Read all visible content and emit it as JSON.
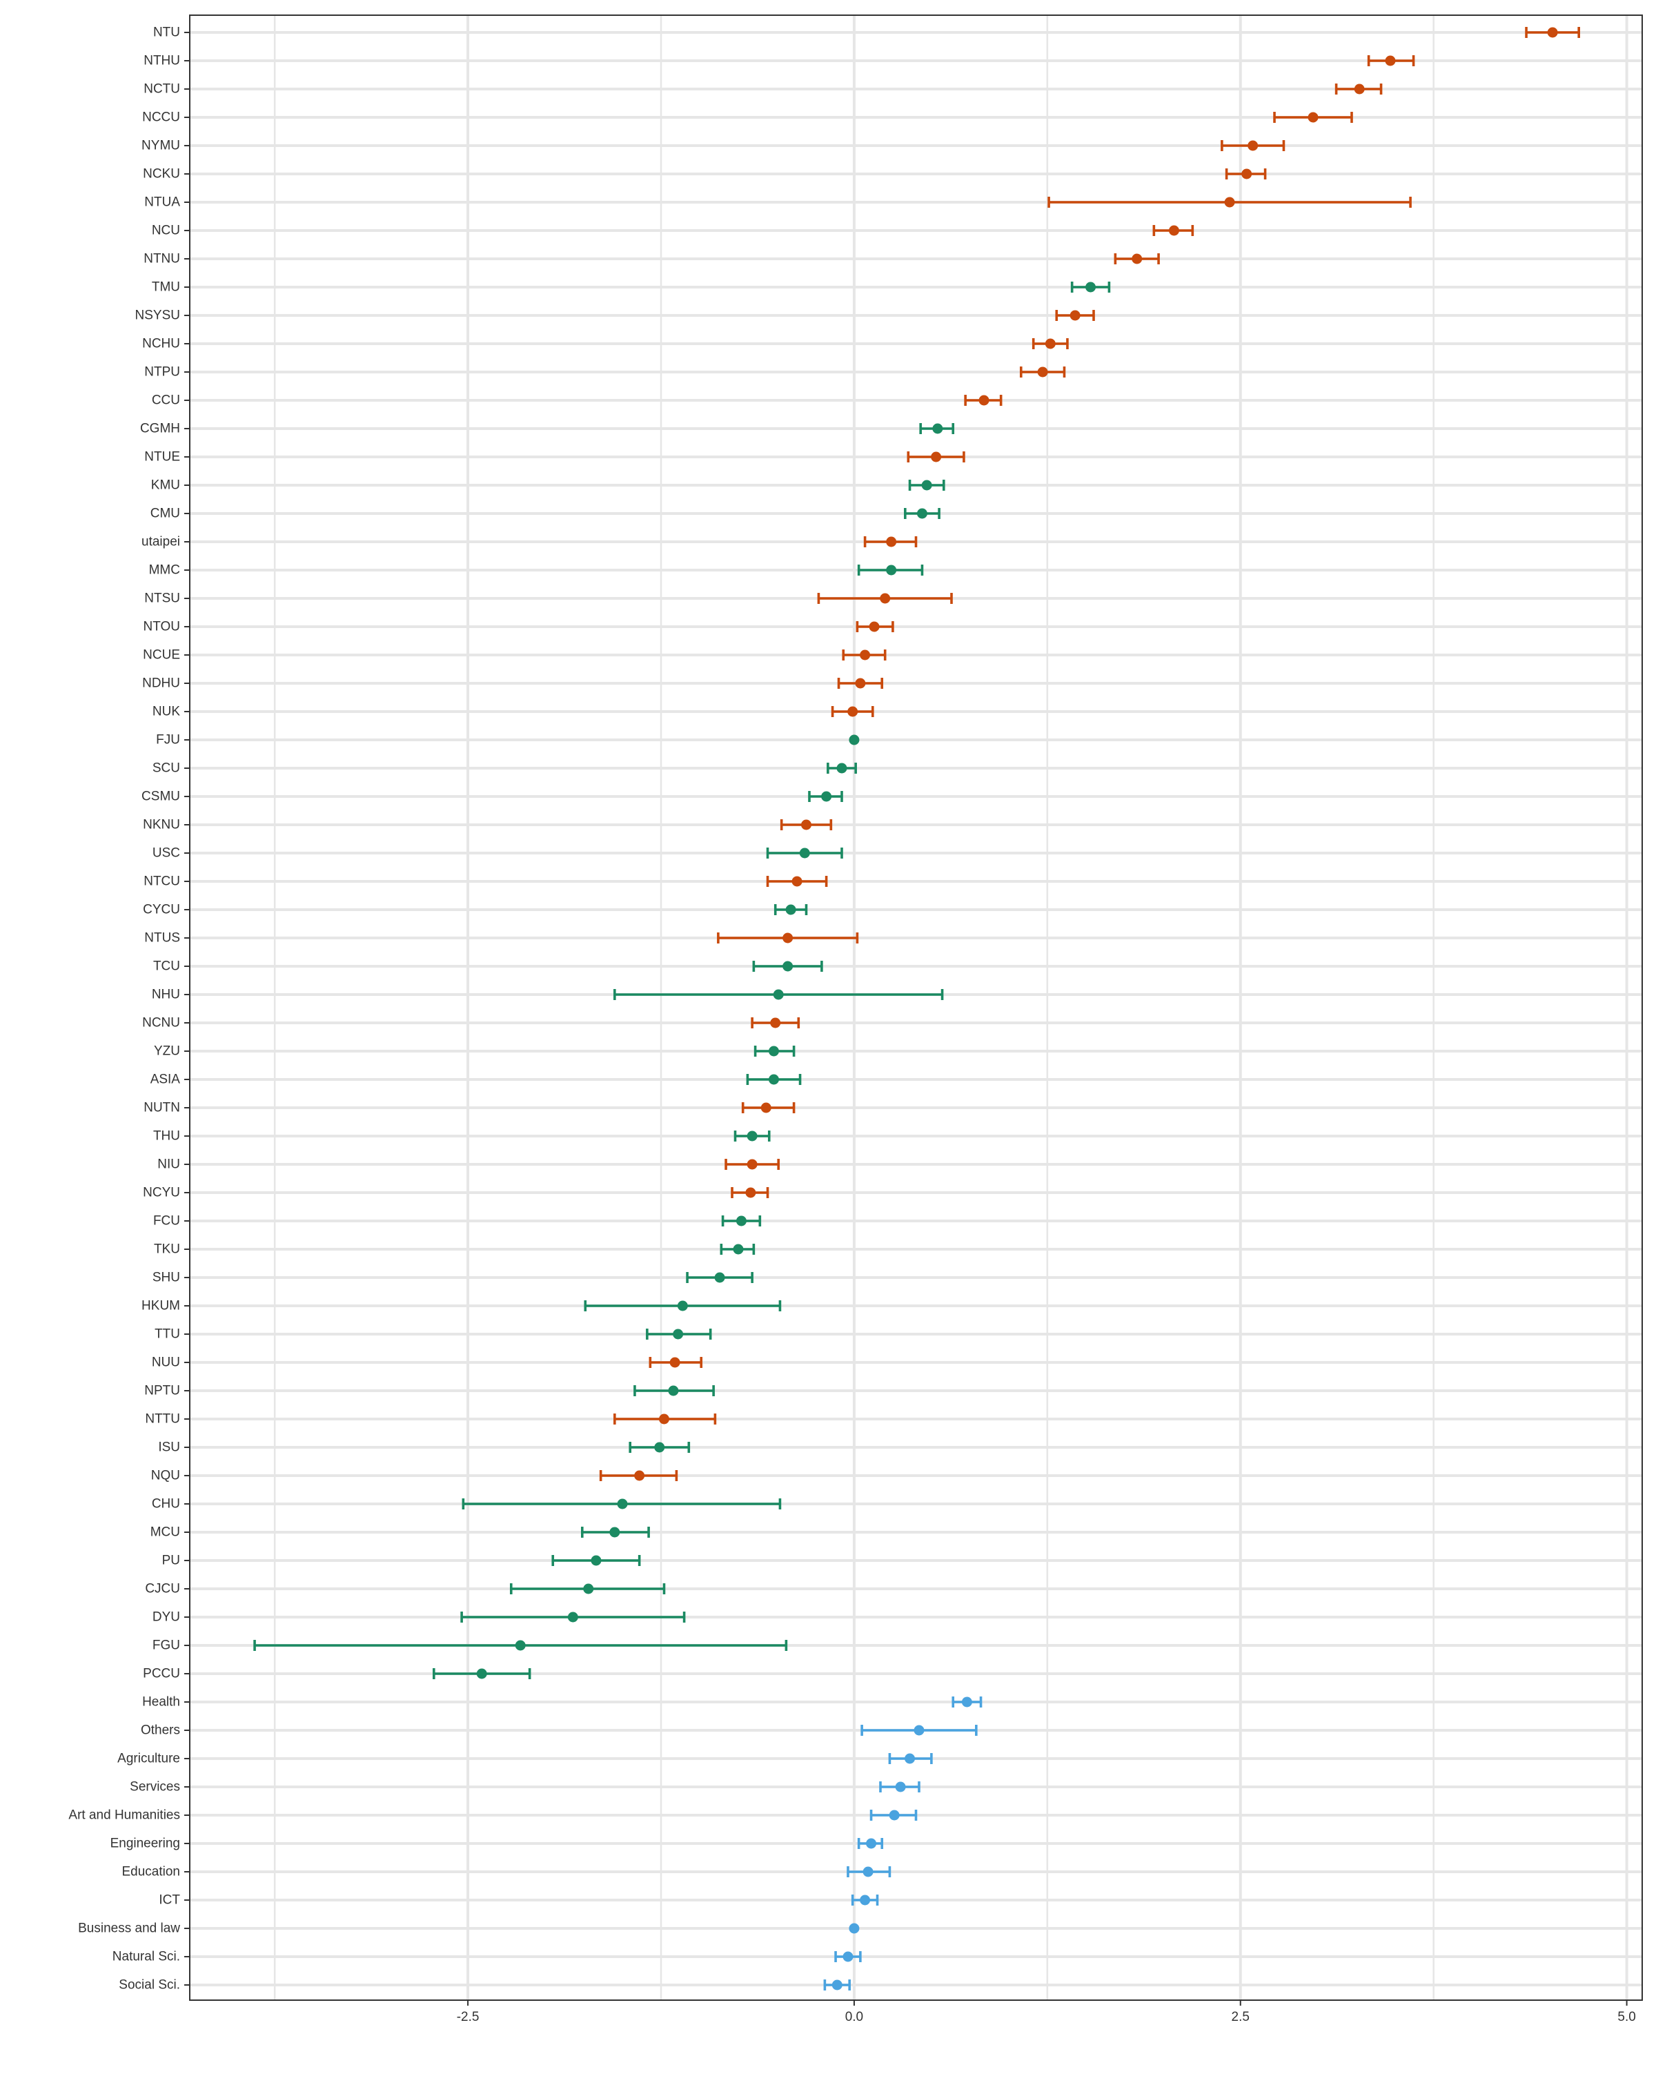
{
  "chart_data": {
    "type": "scatter",
    "xlim": [
      -4.3,
      5.1
    ],
    "x_ticks": [
      "-2.5",
      "0.0",
      "2.5",
      "5.0"
    ],
    "grid": true,
    "colors": {
      "public": "#c94a0c",
      "private": "#1b8a62",
      "field": "#4aa3df",
      "grid": "#e6e6e6",
      "panel_border": "#333333",
      "text": "#333333"
    },
    "points": [
      {
        "label": "NTU",
        "group": "public",
        "x": 4.52,
        "lo": 4.35,
        "hi": 4.69
      },
      {
        "label": "NTHU",
        "group": "public",
        "x": 3.47,
        "lo": 3.33,
        "hi": 3.62
      },
      {
        "label": "NCTU",
        "group": "public",
        "x": 3.27,
        "lo": 3.12,
        "hi": 3.41
      },
      {
        "label": "NCCU",
        "group": "public",
        "x": 2.97,
        "lo": 2.72,
        "hi": 3.22
      },
      {
        "label": "NYMU",
        "group": "public",
        "x": 2.58,
        "lo": 2.38,
        "hi": 2.78
      },
      {
        "label": "NCKU",
        "group": "public",
        "x": 2.54,
        "lo": 2.41,
        "hi": 2.66
      },
      {
        "label": "NTUA",
        "group": "public",
        "x": 2.43,
        "lo": 1.26,
        "hi": 3.6
      },
      {
        "label": "NCU",
        "group": "public",
        "x": 2.07,
        "lo": 1.94,
        "hi": 2.19
      },
      {
        "label": "NTNU",
        "group": "public",
        "x": 1.83,
        "lo": 1.69,
        "hi": 1.97
      },
      {
        "label": "TMU",
        "group": "private",
        "x": 1.53,
        "lo": 1.41,
        "hi": 1.65
      },
      {
        "label": "NSYSU",
        "group": "public",
        "x": 1.43,
        "lo": 1.31,
        "hi": 1.55
      },
      {
        "label": "NCHU",
        "group": "public",
        "x": 1.27,
        "lo": 1.16,
        "hi": 1.38
      },
      {
        "label": "NTPU",
        "group": "public",
        "x": 1.22,
        "lo": 1.08,
        "hi": 1.36
      },
      {
        "label": "CCU",
        "group": "public",
        "x": 0.84,
        "lo": 0.72,
        "hi": 0.95
      },
      {
        "label": "CGMH",
        "group": "private",
        "x": 0.54,
        "lo": 0.43,
        "hi": 0.64
      },
      {
        "label": "NTUE",
        "group": "public",
        "x": 0.53,
        "lo": 0.35,
        "hi": 0.71
      },
      {
        "label": "KMU",
        "group": "private",
        "x": 0.47,
        "lo": 0.36,
        "hi": 0.58
      },
      {
        "label": "CMU",
        "group": "private",
        "x": 0.44,
        "lo": 0.33,
        "hi": 0.55
      },
      {
        "label": "utaipei",
        "group": "public",
        "x": 0.24,
        "lo": 0.07,
        "hi": 0.4
      },
      {
        "label": "MMC",
        "group": "private",
        "x": 0.24,
        "lo": 0.03,
        "hi": 0.44
      },
      {
        "label": "NTSU",
        "group": "public",
        "x": 0.2,
        "lo": -0.23,
        "hi": 0.63
      },
      {
        "label": "NTOU",
        "group": "public",
        "x": 0.13,
        "lo": 0.02,
        "hi": 0.25
      },
      {
        "label": "NCUE",
        "group": "public",
        "x": 0.07,
        "lo": -0.07,
        "hi": 0.2
      },
      {
        "label": "NDHU",
        "group": "public",
        "x": 0.04,
        "lo": -0.1,
        "hi": 0.18
      },
      {
        "label": "NUK",
        "group": "public",
        "x": -0.01,
        "lo": -0.14,
        "hi": 0.12
      },
      {
        "label": "FJU",
        "group": "private",
        "x": 0.0,
        "lo": null,
        "hi": null
      },
      {
        "label": "SCU",
        "group": "private",
        "x": -0.08,
        "lo": -0.17,
        "hi": 0.01
      },
      {
        "label": "CSMU",
        "group": "private",
        "x": -0.18,
        "lo": -0.29,
        "hi": -0.08
      },
      {
        "label": "NKNU",
        "group": "public",
        "x": -0.31,
        "lo": -0.47,
        "hi": -0.15
      },
      {
        "label": "USC",
        "group": "private",
        "x": -0.32,
        "lo": -0.56,
        "hi": -0.08
      },
      {
        "label": "NTCU",
        "group": "public",
        "x": -0.37,
        "lo": -0.56,
        "hi": -0.18
      },
      {
        "label": "CYCU",
        "group": "private",
        "x": -0.41,
        "lo": -0.51,
        "hi": -0.31
      },
      {
        "label": "NTUS",
        "group": "public",
        "x": -0.43,
        "lo": -0.88,
        "hi": 0.02
      },
      {
        "label": "TCU",
        "group": "private",
        "x": -0.43,
        "lo": -0.65,
        "hi": -0.21
      },
      {
        "label": "NHU",
        "group": "private",
        "x": -0.49,
        "lo": -1.55,
        "hi": 0.57
      },
      {
        "label": "NCNU",
        "group": "public",
        "x": -0.51,
        "lo": -0.66,
        "hi": -0.36
      },
      {
        "label": "YZU",
        "group": "private",
        "x": -0.52,
        "lo": -0.64,
        "hi": -0.39
      },
      {
        "label": "ASIA",
        "group": "private",
        "x": -0.52,
        "lo": -0.69,
        "hi": -0.35
      },
      {
        "label": "NUTN",
        "group": "public",
        "x": -0.57,
        "lo": -0.72,
        "hi": -0.39
      },
      {
        "label": "THU",
        "group": "private",
        "x": -0.66,
        "lo": -0.77,
        "hi": -0.55
      },
      {
        "label": "NIU",
        "group": "public",
        "x": -0.66,
        "lo": -0.83,
        "hi": -0.49
      },
      {
        "label": "NCYU",
        "group": "public",
        "x": -0.67,
        "lo": -0.79,
        "hi": -0.56
      },
      {
        "label": "FCU",
        "group": "private",
        "x": -0.73,
        "lo": -0.85,
        "hi": -0.61
      },
      {
        "label": "TKU",
        "group": "private",
        "x": -0.75,
        "lo": -0.86,
        "hi": -0.65
      },
      {
        "label": "SHU",
        "group": "private",
        "x": -0.87,
        "lo": -1.08,
        "hi": -0.66
      },
      {
        "label": "HKUM",
        "group": "private",
        "x": -1.11,
        "lo": -1.74,
        "hi": -0.48
      },
      {
        "label": "TTU",
        "group": "private",
        "x": -1.14,
        "lo": -1.34,
        "hi": -0.93
      },
      {
        "label": "NUU",
        "group": "public",
        "x": -1.16,
        "lo": -1.32,
        "hi": -0.99
      },
      {
        "label": "NPTU",
        "group": "private",
        "x": -1.17,
        "lo": -1.42,
        "hi": -0.91
      },
      {
        "label": "NTTU",
        "group": "public",
        "x": -1.23,
        "lo": -1.55,
        "hi": -0.9
      },
      {
        "label": "ISU",
        "group": "private",
        "x": -1.26,
        "lo": -1.45,
        "hi": -1.07
      },
      {
        "label": "NQU",
        "group": "public",
        "x": -1.39,
        "lo": -1.64,
        "hi": -1.15
      },
      {
        "label": "CHU",
        "group": "private",
        "x": -1.5,
        "lo": -2.53,
        "hi": -0.48
      },
      {
        "label": "MCU",
        "group": "private",
        "x": -1.55,
        "lo": -1.76,
        "hi": -1.33
      },
      {
        "label": "PU",
        "group": "private",
        "x": -1.67,
        "lo": -1.95,
        "hi": -1.39
      },
      {
        "label": "CJCU",
        "group": "private",
        "x": -1.72,
        "lo": -2.22,
        "hi": -1.23
      },
      {
        "label": "DYU",
        "group": "private",
        "x": -1.82,
        "lo": -2.54,
        "hi": -1.1
      },
      {
        "label": "FGU",
        "group": "private",
        "x": -2.16,
        "lo": -3.88,
        "hi": -0.44
      },
      {
        "label": "PCCU",
        "group": "private",
        "x": -2.41,
        "lo": -2.72,
        "hi": -2.1
      },
      {
        "label": "Health",
        "group": "field",
        "x": 0.73,
        "lo": 0.64,
        "hi": 0.82
      },
      {
        "label": "Others",
        "group": "field",
        "x": 0.42,
        "lo": 0.05,
        "hi": 0.79
      },
      {
        "label": "Agriculture",
        "group": "field",
        "x": 0.36,
        "lo": 0.23,
        "hi": 0.5
      },
      {
        "label": "Services",
        "group": "field",
        "x": 0.3,
        "lo": 0.17,
        "hi": 0.42
      },
      {
        "label": "Art and Humanities",
        "group": "field",
        "x": 0.26,
        "lo": 0.11,
        "hi": 0.4
      },
      {
        "label": "Engineering",
        "group": "field",
        "x": 0.11,
        "lo": 0.03,
        "hi": 0.18
      },
      {
        "label": "Education",
        "group": "field",
        "x": 0.09,
        "lo": -0.04,
        "hi": 0.23
      },
      {
        "label": "ICT",
        "group": "field",
        "x": 0.07,
        "lo": -0.01,
        "hi": 0.15
      },
      {
        "label": "Business and law",
        "group": "field",
        "x": 0.0,
        "lo": null,
        "hi": null
      },
      {
        "label": "Natural Sci.",
        "group": "field",
        "x": -0.04,
        "lo": -0.12,
        "hi": 0.04
      },
      {
        "label": "Social Sci.",
        "group": "field",
        "x": -0.11,
        "lo": -0.19,
        "hi": -0.03
      }
    ]
  }
}
